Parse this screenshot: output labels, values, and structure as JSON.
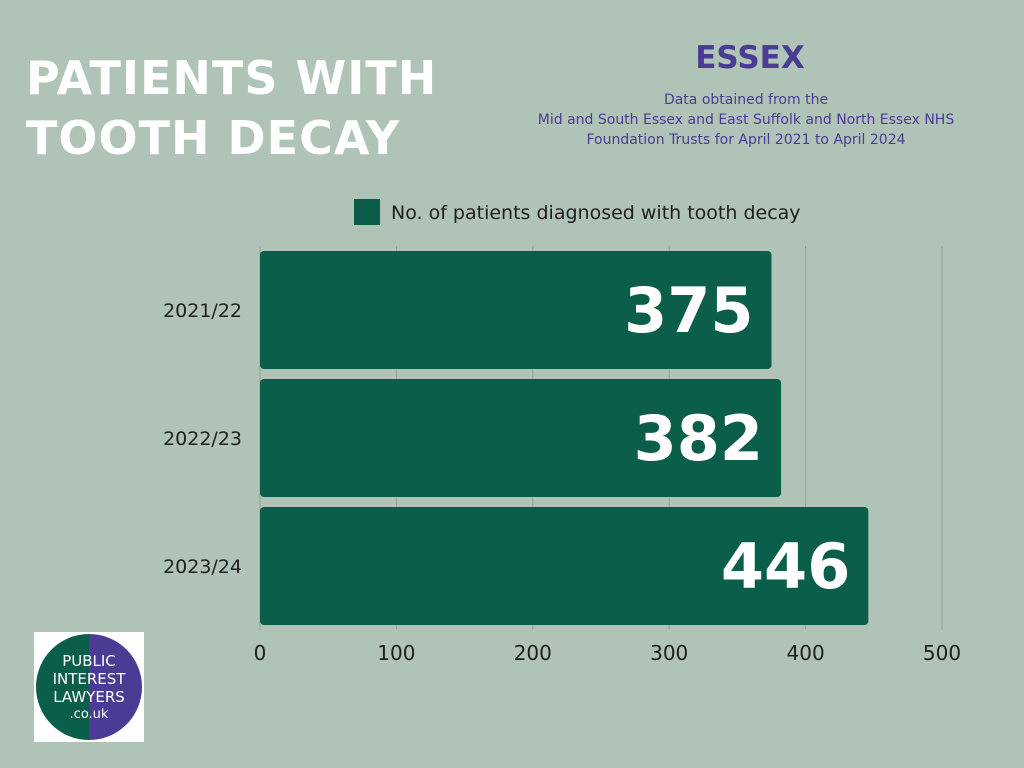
{
  "header": {
    "title_lines": [
      "PATIENTS WITH",
      "TOOTH DECAY"
    ],
    "region": "ESSEX",
    "source_lines": [
      "Data obtained from the",
      "Mid and South Essex and East Suffolk and North Essex NHS",
      "Foundation Trusts for April 2021 to April 2024"
    ]
  },
  "logo": {
    "lines": [
      "PUBLIC",
      "INTEREST",
      "LAWYERS",
      ".co.uk"
    ],
    "colors": {
      "left": "#0b5e4a",
      "right": "#4a3c95"
    }
  },
  "colors": {
    "bar": "#0b5e4a",
    "background": "#afc3b7",
    "accent": "#4a3c95",
    "grid": "#8fa597"
  },
  "chart_data": {
    "type": "bar",
    "orientation": "horizontal",
    "categories": [
      "2021/22",
      "2022/23",
      "2023/24"
    ],
    "series": [
      {
        "name": "No. of patients diagnosed with tooth decay",
        "values": [
          375,
          382,
          446
        ]
      }
    ],
    "xlim": [
      0,
      500
    ],
    "xticks": [
      0,
      100,
      200,
      300,
      400,
      500
    ],
    "grid": "vertical",
    "legend": "top"
  }
}
